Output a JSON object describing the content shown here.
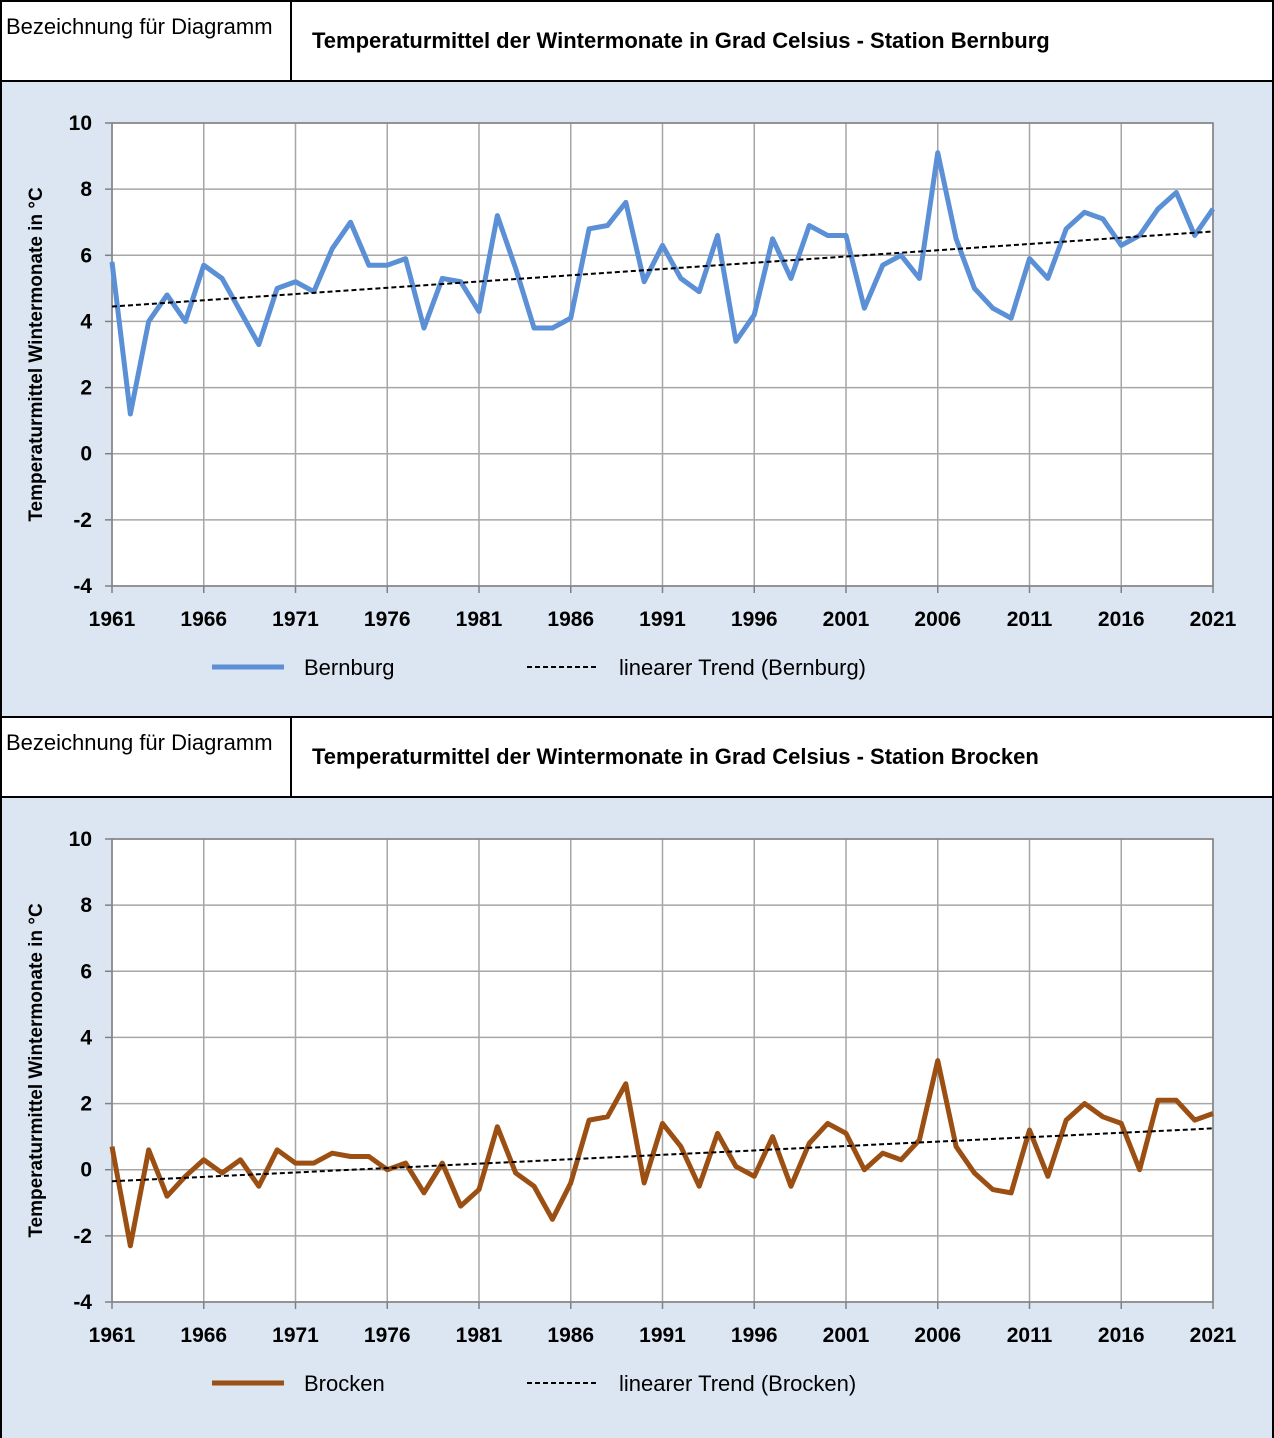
{
  "chart_data": [
    {
      "type": "line",
      "label": "Bezeichnung für Diagramm",
      "title": "Temperaturmittel der Wintermonate in Grad Celsius - Station Bernburg",
      "y_label": "Temperaturmittel Wintermonate in °C",
      "x": [
        1961,
        1962,
        1963,
        1964,
        1965,
        1966,
        1967,
        1968,
        1969,
        1970,
        1971,
        1972,
        1973,
        1974,
        1975,
        1976,
        1977,
        1978,
        1979,
        1980,
        1981,
        1982,
        1983,
        1984,
        1985,
        1986,
        1987,
        1988,
        1989,
        1990,
        1991,
        1992,
        1993,
        1994,
        1995,
        1996,
        1997,
        1998,
        1999,
        2000,
        2001,
        2002,
        2003,
        2004,
        2005,
        2006,
        2007,
        2008,
        2009,
        2010,
        2011,
        2012,
        2013,
        2014,
        2015,
        2016,
        2017,
        2018,
        2019,
        2020,
        2021
      ],
      "series": [
        {
          "name": "Bernburg",
          "color": "#5b8fd6",
          "values": [
            5.8,
            1.2,
            4.0,
            4.8,
            4.0,
            5.7,
            5.3,
            4.3,
            3.3,
            5.0,
            5.2,
            4.9,
            6.2,
            7.0,
            5.7,
            5.7,
            5.9,
            3.8,
            5.3,
            5.2,
            4.3,
            7.2,
            5.6,
            3.8,
            3.8,
            4.1,
            6.8,
            6.9,
            7.6,
            5.2,
            6.3,
            5.3,
            4.9,
            6.6,
            3.4,
            4.2,
            6.5,
            5.3,
            6.9,
            6.6,
            6.6,
            4.4,
            5.7,
            6.0,
            5.3,
            9.1,
            6.5,
            5.0,
            4.4,
            4.1,
            5.9,
            5.3,
            6.8,
            7.3,
            7.1,
            6.3,
            6.6,
            7.4,
            7.9,
            6.6,
            7.4
          ]
        },
        {
          "name": "linearer Trend (Bernburg)",
          "color": "#000000",
          "dashed": true,
          "x": [
            1961,
            2021
          ],
          "values": [
            4.45,
            6.72
          ]
        }
      ],
      "xlim": [
        1961,
        2021
      ],
      "xticks": [
        1961,
        1966,
        1971,
        1976,
        1981,
        1986,
        1991,
        1996,
        2001,
        2006,
        2011,
        2016,
        2021
      ],
      "ylim": [
        -4,
        10
      ],
      "yticks": [
        -4,
        -2,
        0,
        2,
        4,
        6,
        8,
        10
      ],
      "grid": true
    },
    {
      "type": "line",
      "label": "Bezeichnung für Diagramm",
      "title": "Temperaturmittel der Wintermonate in Grad Celsius - Station Brocken",
      "y_label": "Temperaturmittel Wintermonate in °C",
      "x": [
        1961,
        1962,
        1963,
        1964,
        1965,
        1966,
        1967,
        1968,
        1969,
        1970,
        1971,
        1972,
        1973,
        1974,
        1975,
        1976,
        1977,
        1978,
        1979,
        1980,
        1981,
        1982,
        1983,
        1984,
        1985,
        1986,
        1987,
        1988,
        1989,
        1990,
        1991,
        1992,
        1993,
        1994,
        1995,
        1996,
        1997,
        1998,
        1999,
        2000,
        2001,
        2002,
        2003,
        2004,
        2005,
        2006,
        2007,
        2008,
        2009,
        2010,
        2011,
        2012,
        2013,
        2014,
        2015,
        2016,
        2017,
        2018,
        2019,
        2020,
        2021
      ],
      "series": [
        {
          "name": "Brocken",
          "color": "#9c4f12",
          "values": [
            0.7,
            -2.3,
            0.6,
            -0.8,
            -0.2,
            0.3,
            -0.1,
            0.3,
            -0.5,
            0.6,
            0.2,
            0.2,
            0.5,
            0.4,
            0.4,
            0.0,
            0.2,
            -0.7,
            0.2,
            -1.1,
            -0.6,
            1.3,
            -0.1,
            -0.5,
            -1.5,
            -0.4,
            1.5,
            1.6,
            2.6,
            -0.4,
            1.4,
            0.7,
            -0.5,
            1.1,
            0.1,
            -0.2,
            1.0,
            -0.5,
            0.8,
            1.4,
            1.1,
            0.0,
            0.5,
            0.3,
            0.9,
            3.3,
            0.7,
            -0.1,
            -0.6,
            -0.7,
            1.2,
            -0.2,
            1.5,
            2.0,
            1.6,
            1.4,
            0.0,
            2.1,
            2.1,
            1.5,
            1.7
          ]
        },
        {
          "name": "linearer Trend (Brocken)",
          "color": "#000000",
          "dashed": true,
          "x": [
            1961,
            2021
          ],
          "values": [
            -0.35,
            1.25
          ]
        }
      ],
      "xlim": [
        1961,
        2021
      ],
      "xticks": [
        1961,
        1966,
        1971,
        1976,
        1981,
        1986,
        1991,
        1996,
        2001,
        2006,
        2011,
        2016,
        2021
      ],
      "ylim": [
        -4,
        10
      ],
      "yticks": [
        -4,
        -2,
        0,
        2,
        4,
        6,
        8,
        10
      ],
      "grid": true
    }
  ]
}
